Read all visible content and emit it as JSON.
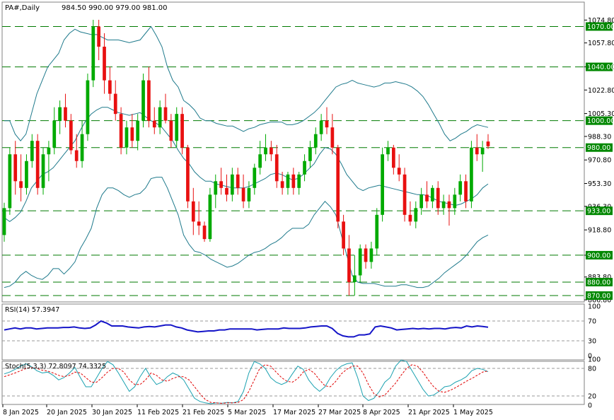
{
  "header": {
    "symbol_label": "PA#,Daily",
    "ohlc_label": "984.50 990.00 979.00 981.00"
  },
  "colors": {
    "bull": "#00aa00",
    "bear": "#e81010",
    "band": "#1f7a8c",
    "level_line": "#007a00",
    "label_bg": "#008800",
    "rsi": "#1515c8",
    "stoch_main": "#1aa1b0",
    "stoch_signal": "#e00000",
    "grid_dash": "#9a9a9a"
  },
  "price_axis": {
    "ticks": [
      "1074.80",
      "1057.80",
      "1040.00",
      "1022.80",
      "1005.30",
      "988.30",
      "970.80",
      "953.30",
      "936.30",
      "918.80",
      "900.00",
      "883.80",
      "866.80"
    ],
    "level_labels": [
      "1070.00",
      "1040.00",
      "1000.00",
      "980.00",
      "933.00",
      "900.00",
      "880.00",
      "870.00"
    ]
  },
  "date_axis": {
    "labels": [
      "8 Jan 2025",
      "20 Jan 2025",
      "30 Jan 2025",
      "11 Feb 2025",
      "21 Feb 2025",
      "5 Mar 2025",
      "17 Mar 2025",
      "27 Mar 2025",
      "8 Apr 2025",
      "21 Apr 2025",
      "1 May 2025"
    ]
  },
  "rsi_panel": {
    "label": "RSI(14) 57.3947",
    "ticks": [
      "100",
      "70",
      "30",
      "0"
    ]
  },
  "stoch_panel": {
    "label": "Stoch(5,3,3) 72.8097 74.3325",
    "ticks": [
      "100",
      "80",
      "20",
      "0"
    ]
  },
  "chart_data": [
    {
      "type": "candlestick",
      "symbol": "PA#",
      "timeframe": "Daily",
      "horizontal_levels": [
        1070,
        1040,
        1000,
        980,
        933,
        900,
        880,
        870
      ],
      "ylim": [
        866.8,
        1074.8
      ],
      "candles": [
        {
          "o": 915,
          "h": 939,
          "l": 910,
          "c": 935
        },
        {
          "o": 935,
          "h": 980,
          "l": 930,
          "c": 975
        },
        {
          "o": 975,
          "h": 985,
          "l": 945,
          "c": 955
        },
        {
          "o": 955,
          "h": 975,
          "l": 940,
          "c": 950
        },
        {
          "o": 950,
          "h": 975,
          "l": 945,
          "c": 970
        },
        {
          "o": 970,
          "h": 990,
          "l": 965,
          "c": 985
        },
        {
          "o": 985,
          "h": 990,
          "l": 945,
          "c": 950
        },
        {
          "o": 950,
          "h": 980,
          "l": 945,
          "c": 975
        },
        {
          "o": 975,
          "h": 985,
          "l": 955,
          "c": 980
        },
        {
          "o": 980,
          "h": 1010,
          "l": 975,
          "c": 1000
        },
        {
          "o": 1000,
          "h": 1015,
          "l": 990,
          "c": 1010
        },
        {
          "o": 1010,
          "h": 1020,
          "l": 995,
          "c": 1000
        },
        {
          "o": 1000,
          "h": 1005,
          "l": 975,
          "c": 978
        },
        {
          "o": 978,
          "h": 990,
          "l": 965,
          "c": 970
        },
        {
          "o": 970,
          "h": 1000,
          "l": 965,
          "c": 990
        },
        {
          "o": 990,
          "h": 1035,
          "l": 985,
          "c": 1030
        },
        {
          "o": 1030,
          "h": 1075,
          "l": 1025,
          "c": 1070
        },
        {
          "o": 1070,
          "h": 1075,
          "l": 1045,
          "c": 1055
        },
        {
          "o": 1055,
          "h": 1065,
          "l": 1020,
          "c": 1030
        },
        {
          "o": 1030,
          "h": 1040,
          "l": 1015,
          "c": 1020
        },
        {
          "o": 1020,
          "h": 1030,
          "l": 1000,
          "c": 1005
        },
        {
          "o": 1005,
          "h": 1010,
          "l": 975,
          "c": 980
        },
        {
          "o": 980,
          "h": 1000,
          "l": 975,
          "c": 995
        },
        {
          "o": 995,
          "h": 1005,
          "l": 980,
          "c": 985
        },
        {
          "o": 985,
          "h": 1005,
          "l": 978,
          "c": 1000
        },
        {
          "o": 1000,
          "h": 1035,
          "l": 995,
          "c": 1030
        },
        {
          "o": 1030,
          "h": 1040,
          "l": 995,
          "c": 1000
        },
        {
          "o": 1000,
          "h": 1010,
          "l": 990,
          "c": 995
        },
        {
          "o": 995,
          "h": 1015,
          "l": 990,
          "c": 1010
        },
        {
          "o": 1010,
          "h": 1020,
          "l": 998,
          "c": 1000
        },
        {
          "o": 1000,
          "h": 1005,
          "l": 980,
          "c": 985
        },
        {
          "o": 985,
          "h": 1010,
          "l": 980,
          "c": 1005
        },
        {
          "o": 1005,
          "h": 1010,
          "l": 975,
          "c": 980
        },
        {
          "o": 980,
          "h": 982,
          "l": 935,
          "c": 940
        },
        {
          "o": 940,
          "h": 950,
          "l": 915,
          "c": 925
        },
        {
          "o": 925,
          "h": 940,
          "l": 915,
          "c": 922
        },
        {
          "o": 922,
          "h": 925,
          "l": 910,
          "c": 912
        },
        {
          "o": 912,
          "h": 950,
          "l": 910,
          "c": 945
        },
        {
          "o": 945,
          "h": 960,
          "l": 935,
          "c": 955
        },
        {
          "o": 955,
          "h": 965,
          "l": 945,
          "c": 950
        },
        {
          "o": 950,
          "h": 960,
          "l": 940,
          "c": 945
        },
        {
          "o": 945,
          "h": 965,
          "l": 940,
          "c": 960
        },
        {
          "o": 960,
          "h": 965,
          "l": 945,
          "c": 950
        },
        {
          "o": 950,
          "h": 960,
          "l": 935,
          "c": 940
        },
        {
          "o": 940,
          "h": 955,
          "l": 935,
          "c": 950
        },
        {
          "o": 950,
          "h": 968,
          "l": 945,
          "c": 965
        },
        {
          "o": 965,
          "h": 985,
          "l": 960,
          "c": 975
        },
        {
          "o": 975,
          "h": 990,
          "l": 970,
          "c": 980
        },
        {
          "o": 980,
          "h": 985,
          "l": 970,
          "c": 975
        },
        {
          "o": 975,
          "h": 982,
          "l": 950,
          "c": 955
        },
        {
          "o": 955,
          "h": 962,
          "l": 945,
          "c": 950
        },
        {
          "o": 950,
          "h": 962,
          "l": 945,
          "c": 960
        },
        {
          "o": 960,
          "h": 965,
          "l": 945,
          "c": 950
        },
        {
          "o": 950,
          "h": 962,
          "l": 945,
          "c": 960
        },
        {
          "o": 960,
          "h": 975,
          "l": 955,
          "c": 970
        },
        {
          "o": 970,
          "h": 985,
          "l": 965,
          "c": 980
        },
        {
          "o": 980,
          "h": 995,
          "l": 975,
          "c": 990
        },
        {
          "o": 990,
          "h": 1005,
          "l": 985,
          "c": 1000
        },
        {
          "o": 1000,
          "h": 1010,
          "l": 990,
          "c": 995
        },
        {
          "o": 995,
          "h": 1005,
          "l": 975,
          "c": 980
        },
        {
          "o": 980,
          "h": 982,
          "l": 920,
          "c": 925
        },
        {
          "o": 925,
          "h": 930,
          "l": 900,
          "c": 905
        },
        {
          "o": 905,
          "h": 915,
          "l": 870,
          "c": 880
        },
        {
          "o": 880,
          "h": 900,
          "l": 870,
          "c": 885
        },
        {
          "o": 885,
          "h": 908,
          "l": 880,
          "c": 905
        },
        {
          "o": 905,
          "h": 908,
          "l": 890,
          "c": 895
        },
        {
          "o": 895,
          "h": 910,
          "l": 890,
          "c": 905
        },
        {
          "o": 905,
          "h": 935,
          "l": 900,
          "c": 930
        },
        {
          "o": 930,
          "h": 980,
          "l": 925,
          "c": 975
        },
        {
          "o": 975,
          "h": 985,
          "l": 970,
          "c": 980
        },
        {
          "o": 980,
          "h": 982,
          "l": 960,
          "c": 965
        },
        {
          "o": 965,
          "h": 975,
          "l": 955,
          "c": 960
        },
        {
          "o": 960,
          "h": 965,
          "l": 925,
          "c": 930
        },
        {
          "o": 930,
          "h": 940,
          "l": 922,
          "c": 925
        },
        {
          "o": 925,
          "h": 940,
          "l": 920,
          "c": 935
        },
        {
          "o": 935,
          "h": 950,
          "l": 930,
          "c": 945
        },
        {
          "o": 945,
          "h": 955,
          "l": 935,
          "c": 940
        },
        {
          "o": 940,
          "h": 952,
          "l": 935,
          "c": 950
        },
        {
          "o": 950,
          "h": 955,
          "l": 930,
          "c": 935
        },
        {
          "o": 935,
          "h": 945,
          "l": 930,
          "c": 940
        },
        {
          "o": 940,
          "h": 945,
          "l": 922,
          "c": 935
        },
        {
          "o": 935,
          "h": 950,
          "l": 930,
          "c": 945
        },
        {
          "o": 945,
          "h": 960,
          "l": 940,
          "c": 955
        },
        {
          "o": 955,
          "h": 960,
          "l": 935,
          "c": 940
        },
        {
          "o": 940,
          "h": 985,
          "l": 935,
          "c": 980
        },
        {
          "o": 980,
          "h": 990,
          "l": 970,
          "c": 975
        },
        {
          "o": 975,
          "h": 985,
          "l": 962,
          "c": 980
        },
        {
          "o": 984.5,
          "h": 990,
          "l": 979,
          "c": 981
        }
      ],
      "bollinger": {
        "middle": [
          928,
          925,
          928,
          932,
          940,
          950,
          955,
          960,
          962,
          965,
          970,
          975,
          980,
          985,
          993,
          1000,
          1005,
          1008,
          1010,
          1010,
          1008,
          1006,
          1005,
          1004,
          1005,
          1006,
          1003,
          1000,
          998,
          995,
          990,
          985,
          978,
          972,
          968,
          962,
          958,
          955,
          955,
          953,
          952,
          951,
          950,
          950,
          950,
          951,
          953,
          955,
          957,
          960,
          961,
          960,
          958,
          956,
          957,
          960,
          964,
          968,
          975,
          980,
          979,
          975,
          968,
          960,
          955,
          950,
          948,
          950,
          951,
          952,
          951,
          950,
          949,
          948,
          947,
          946,
          945,
          945,
          944,
          942,
          940,
          939,
          938,
          937,
          938,
          940,
          942,
          945,
          950,
          953
        ],
        "upper": [
          1000,
          1000,
          990,
          985,
          990,
          1005,
          1020,
          1030,
          1040,
          1045,
          1050,
          1060,
          1065,
          1068,
          1066,
          1065,
          1064,
          1064,
          1062,
          1060,
          1060,
          1060,
          1059,
          1058,
          1059,
          1060,
          1065,
          1070,
          1063,
          1055,
          1040,
          1030,
          1025,
          1015,
          1012,
          1008,
          1002,
          1000,
          1000,
          998,
          997,
          996,
          996,
          994,
          992,
          994,
          995,
          997,
          998,
          999,
          999,
          999,
          997,
          997,
          998,
          1000,
          1003,
          1006,
          1010,
          1015,
          1020,
          1025,
          1027,
          1028,
          1030,
          1028,
          1027,
          1026,
          1025,
          1026,
          1028,
          1028,
          1029,
          1028,
          1027,
          1025,
          1022,
          1018,
          1012,
          1005,
          998,
          990,
          985,
          987,
          990,
          992,
          995,
          997,
          996,
          995
        ],
        "lower": [
          876,
          877,
          880,
          885,
          888,
          885,
          883,
          882,
          885,
          890,
          890,
          886,
          890,
          895,
          905,
          912,
          920,
          935,
          945,
          950,
          950,
          948,
          945,
          943,
          945,
          946,
          950,
          957,
          958,
          958,
          950,
          940,
          930,
          915,
          908,
          903,
          902,
          900,
          897,
          895,
          893,
          891,
          892,
          894,
          897,
          900,
          902,
          903,
          905,
          908,
          910,
          913,
          917,
          920,
          920,
          920,
          923,
          930,
          935,
          940,
          936,
          930,
          915,
          900,
          885,
          880,
          879,
          879,
          879,
          878,
          877,
          877,
          877,
          878,
          878,
          877,
          876,
          876,
          877,
          880,
          883,
          887,
          890,
          893,
          896,
          900,
          905,
          910,
          913,
          915
        ]
      }
    },
    {
      "type": "line",
      "name": "RSI(14)",
      "last_value": 57.3947,
      "levels": [
        70,
        30
      ],
      "ylim": [
        0,
        100
      ],
      "values": [
        52,
        54,
        56,
        54,
        56,
        56,
        54,
        55,
        56,
        56,
        56,
        57,
        57,
        58,
        56,
        55,
        56,
        62,
        70,
        66,
        60,
        60,
        60,
        58,
        57,
        56,
        58,
        59,
        58,
        60,
        62,
        62,
        58,
        56,
        52,
        50,
        48,
        49,
        50,
        50,
        52,
        52,
        54,
        54,
        54,
        54,
        54,
        52,
        53,
        54,
        54,
        54,
        56,
        55,
        55,
        55,
        56,
        58,
        59,
        60,
        60,
        55,
        45,
        40,
        38,
        38,
        42,
        42,
        44,
        58,
        60,
        58,
        56,
        52,
        53,
        54,
        55,
        54,
        55,
        54,
        55,
        55,
        54,
        56,
        57,
        56,
        60,
        58,
        60,
        59,
        57.4
      ]
    },
    {
      "type": "line",
      "name": "Stoch(5,3,3)",
      "main_last": 72.8097,
      "signal_last": 74.3325,
      "levels": [
        80,
        20
      ],
      "ylim": [
        0,
        100
      ],
      "series": [
        {
          "name": "main",
          "values": [
            68,
            72,
            78,
            85,
            90,
            84,
            75,
            70,
            72,
            65,
            55,
            60,
            70,
            82,
            60,
            40,
            40,
            60,
            80,
            95,
            88,
            70,
            50,
            30,
            40,
            62,
            80,
            60,
            45,
            50,
            62,
            70,
            65,
            55,
            35,
            15,
            8,
            5,
            3,
            5,
            4,
            6,
            5,
            8,
            30,
            70,
            95,
            90,
            80,
            60,
            50,
            45,
            50,
            68,
            85,
            78,
            55,
            40,
            30,
            40,
            60,
            75,
            85,
            90,
            92,
            60,
            20,
            10,
            15,
            30,
            50,
            60,
            85,
            98,
            95,
            75,
            55,
            35,
            20,
            22,
            30,
            40,
            42,
            50,
            55,
            62,
            75,
            80,
            78,
            72.8
          ]
        },
        {
          "name": "signal",
          "values": [
            62,
            66,
            70,
            75,
            80,
            82,
            80,
            76,
            74,
            70,
            65,
            62,
            65,
            72,
            70,
            60,
            50,
            50,
            60,
            72,
            80,
            80,
            72,
            55,
            45,
            45,
            55,
            70,
            65,
            55,
            52,
            58,
            62,
            62,
            55,
            40,
            25,
            12,
            6,
            5,
            4,
            5,
            5,
            6,
            12,
            30,
            55,
            80,
            88,
            85,
            72,
            60,
            52,
            50,
            58,
            72,
            78,
            70,
            55,
            42,
            40,
            52,
            68,
            78,
            85,
            85,
            70,
            45,
            25,
            18,
            22,
            35,
            48,
            65,
            80,
            88,
            85,
            72,
            55,
            40,
            30,
            28,
            32,
            38,
            45,
            52,
            58,
            65,
            72,
            74.3
          ]
        }
      ]
    }
  ]
}
